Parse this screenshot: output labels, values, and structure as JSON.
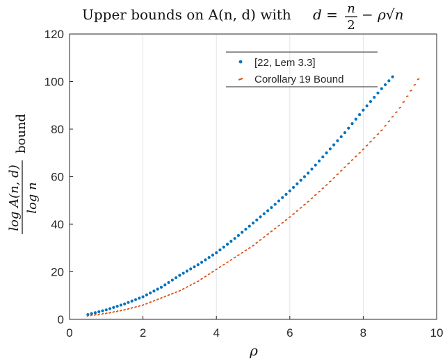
{
  "chart_data": {
    "type": "scatter",
    "title": {
      "main": "Upper bounds on A(n, d) with",
      "lhs": "d =",
      "frac_num": "n",
      "frac_den": "2",
      "rhs": "− ρ√n"
    },
    "xlabel": "ρ",
    "ylabel": {
      "numerator": "log A(n, d)",
      "denominator": "log n",
      "suffix": "bound"
    },
    "xlim": [
      0,
      10
    ],
    "ylim": [
      0,
      120
    ],
    "xticks": [
      0,
      2,
      4,
      6,
      8,
      10
    ],
    "yticks": [
      0,
      20,
      40,
      60,
      80,
      100,
      120
    ],
    "grid": "x-only",
    "legend_position": "top-right",
    "series": [
      {
        "name": "[22, Lem 3.3]",
        "color": "#0072BD",
        "marker": "dot",
        "x": [
          0.5,
          1.0,
          1.5,
          2.0,
          2.5,
          3.0,
          3.5,
          4.0,
          4.5,
          5.0,
          5.5,
          6.0,
          6.5,
          7.0,
          7.5,
          8.0,
          8.5,
          8.8
        ],
        "y": [
          2,
          4,
          6.5,
          9.5,
          13.5,
          18.5,
          23,
          28,
          34,
          40.5,
          47,
          54,
          61.5,
          70,
          78.5,
          88,
          97,
          102
        ]
      },
      {
        "name": "Corollary 19 Bound",
        "color": "#D95319",
        "marker": "dash",
        "x": [
          0.5,
          1.0,
          1.5,
          2.0,
          2.5,
          3.0,
          3.5,
          4.0,
          4.5,
          5.0,
          5.5,
          6.0,
          6.5,
          7.0,
          7.5,
          8.0,
          8.5,
          9.0,
          9.5
        ],
        "y": [
          1.5,
          2.5,
          4,
          6,
          9,
          12,
          16,
          21,
          26,
          31,
          37,
          43,
          49.5,
          56.5,
          64,
          71.5,
          79.5,
          89,
          101
        ]
      }
    ]
  }
}
